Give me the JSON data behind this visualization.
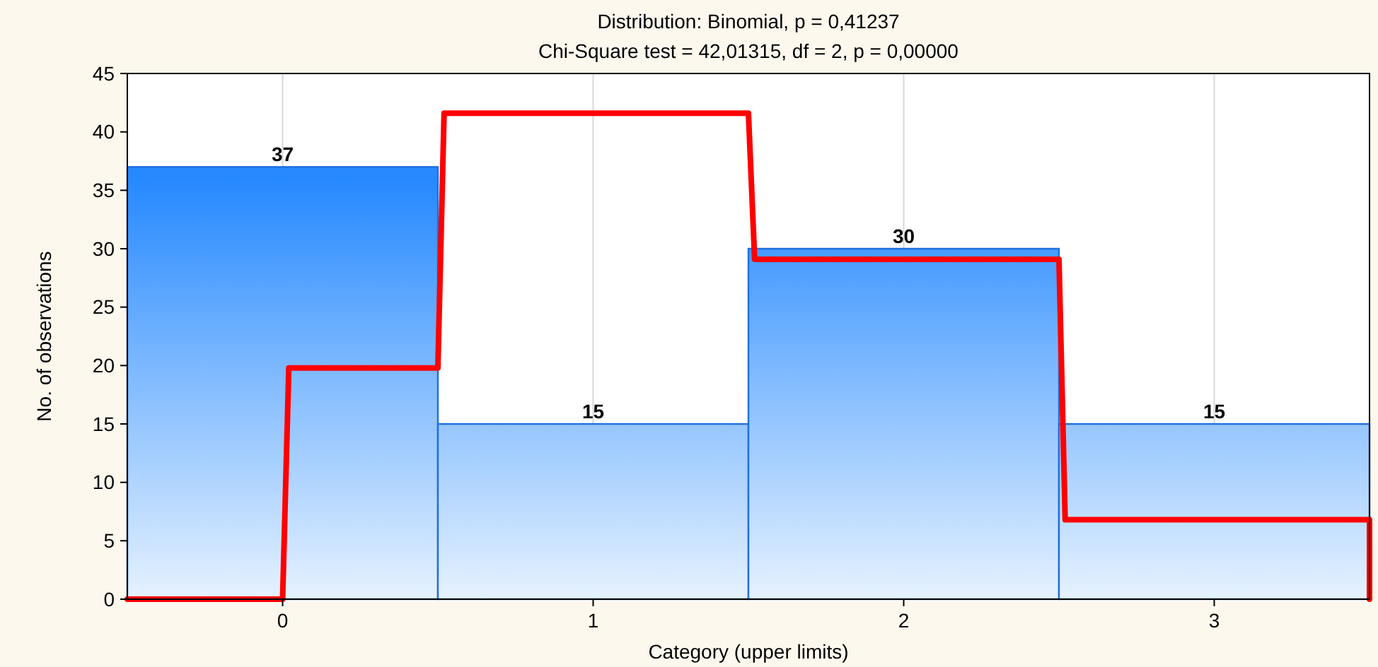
{
  "chart_data": {
    "type": "histogram",
    "title": "Distribution: Binomial, p = 0,41237",
    "subtitle": "Chi-Square test = 42,01315, df = 2, p = 0,00000",
    "xlabel": "Category (upper limits)",
    "ylabel": "No. of observations",
    "bins": [
      -0.5,
      0.5,
      1.5,
      2.5,
      3.5
    ],
    "values": [
      37,
      15,
      30,
      15
    ],
    "color": "#1f6fe0",
    "value_labels": [
      "37",
      "15",
      "30",
      "15"
    ],
    "series": [
      {
        "type": "line",
        "color": "#ff0000",
        "x": [
          -0.5,
          0,
          0.02,
          0.5,
          0.52,
          1.5,
          1.52,
          2.5,
          2.52,
          3.5,
          3.5
        ],
        "values": [
          0,
          0,
          19.8,
          19.8,
          41.6,
          41.6,
          29.1,
          29.1,
          6.8,
          6.8,
          0
        ]
      }
    ],
    "xlim": [
      -0.5,
      3.5
    ],
    "xticks": [
      0,
      1,
      2,
      3
    ],
    "ylim": [
      0,
      45
    ],
    "yticks": [
      0,
      5,
      10,
      15,
      20,
      25,
      30,
      35,
      40,
      45
    ],
    "grid": "x"
  }
}
